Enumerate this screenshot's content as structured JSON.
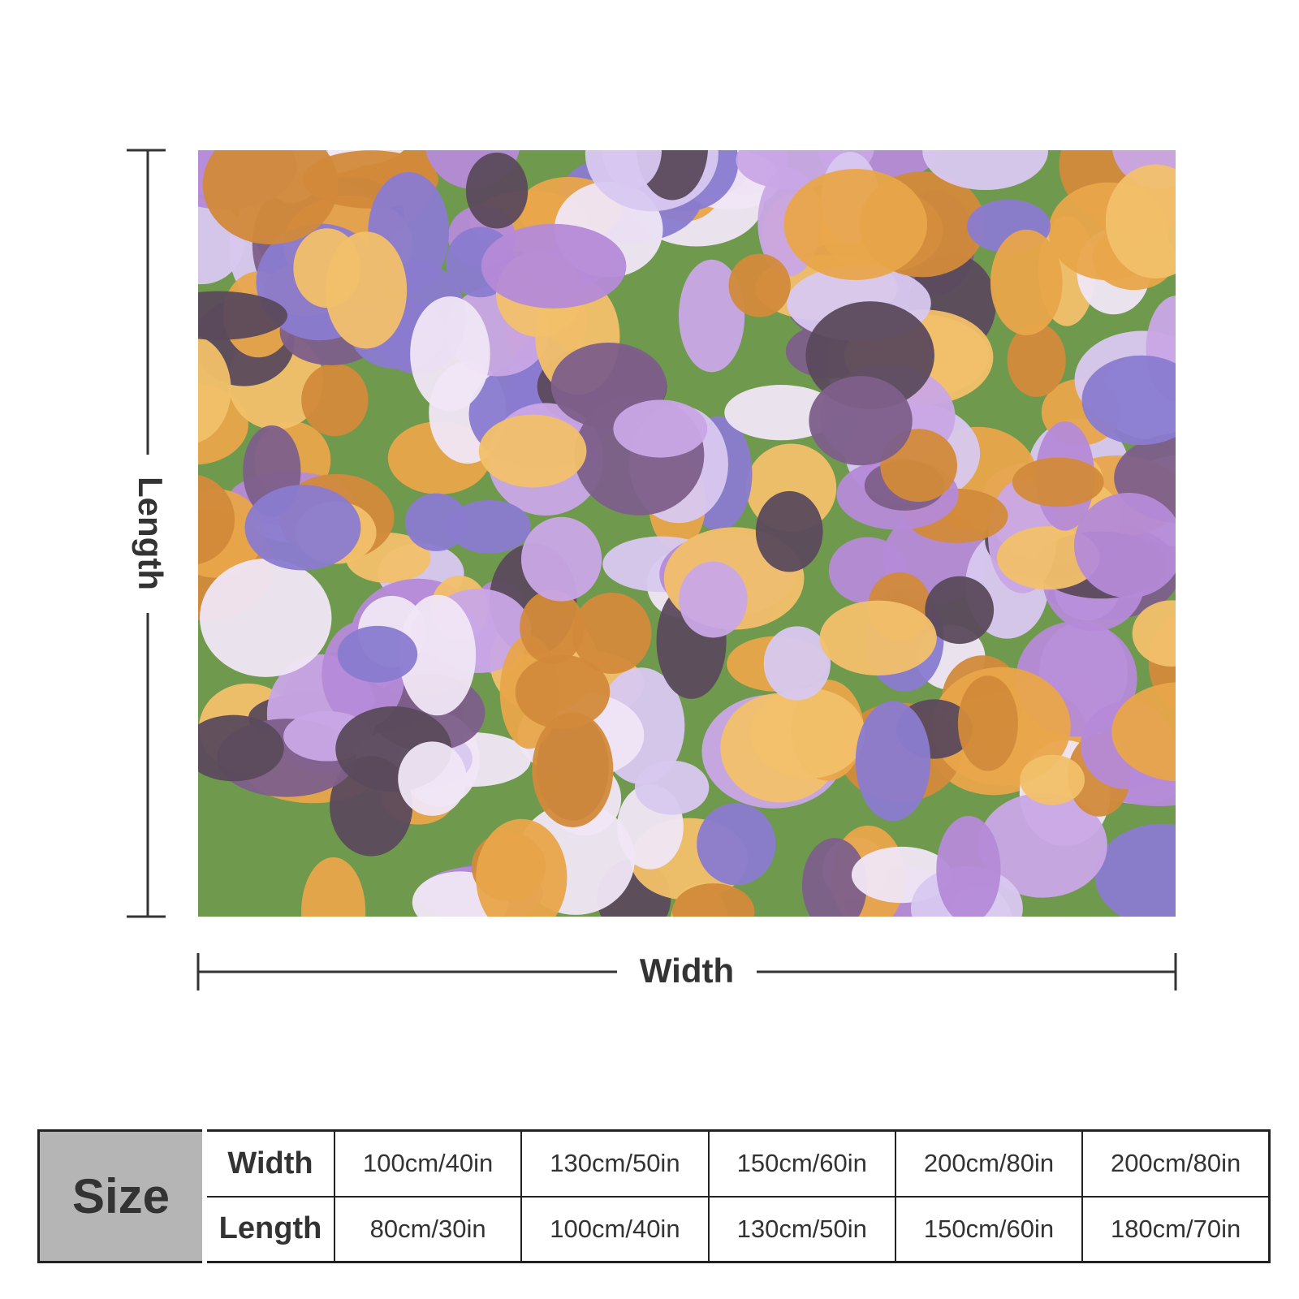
{
  "dimensions": {
    "length_label": "Length",
    "width_label": "Width"
  },
  "table": {
    "title": "Size",
    "rows": [
      {
        "label": "Width",
        "cells": [
          "100cm/40in",
          "130cm/50in",
          "150cm/60in",
          "200cm/80in",
          "200cm/80in"
        ]
      },
      {
        "label": "Length",
        "cells": [
          "80cm/30in",
          "100cm/40in",
          "130cm/50in",
          "150cm/60in",
          "180cm/70in"
        ]
      }
    ]
  }
}
